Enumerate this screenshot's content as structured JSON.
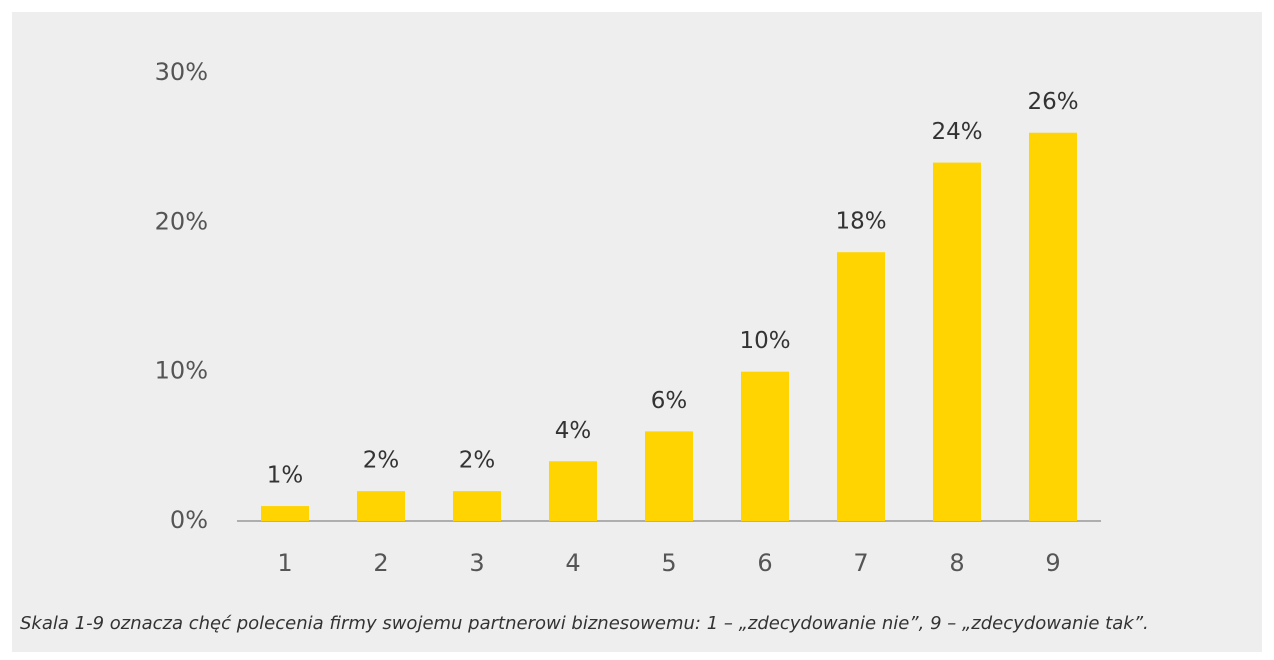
{
  "chart_data": {
    "type": "bar",
    "categories": [
      "1",
      "2",
      "3",
      "4",
      "5",
      "6",
      "7",
      "8",
      "9"
    ],
    "values": [
      1,
      2,
      2,
      4,
      6,
      10,
      18,
      24,
      26
    ],
    "value_labels": [
      "1%",
      "2%",
      "2%",
      "4%",
      "6%",
      "10%",
      "18%",
      "24%",
      "26%"
    ],
    "color": "#ffd400",
    "ylim": [
      0,
      30
    ],
    "yticks": [
      {
        "value": 0,
        "label": "0%"
      },
      {
        "value": 10,
        "label": "10%"
      },
      {
        "value": 20,
        "label": "20%"
      },
      {
        "value": 30,
        "label": "30%"
      }
    ],
    "grid": false,
    "caption": "Skala 1-9 oznacza chęć polecenia firmy swojemu partnerowi biznesowemu: 1 – „zdecydowanie nie”, 9 – „zdecydowanie tak”."
  }
}
